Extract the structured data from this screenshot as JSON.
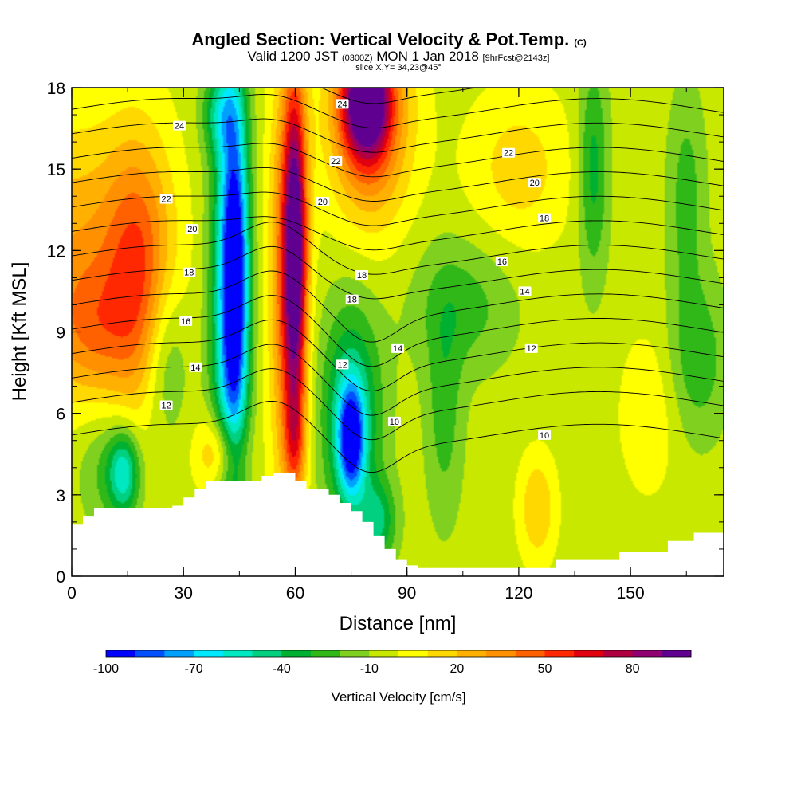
{
  "chart_data": {
    "type": "heatmap",
    "title": "Angled Section: Vertical Velocity & Pot.Temp.",
    "title_mark": "(C)",
    "subtitle_parts": [
      "Valid 1200 JST",
      "(0300Z)",
      "MON 1 Jan 2018",
      "[9hrFcst@2143z]"
    ],
    "slice_info": "slice X,Y= 34,23@45°",
    "xlabel": "Distance [nm]",
    "ylabel": "Height [Kft MSL]",
    "xlim": [
      0,
      175
    ],
    "ylim": [
      0,
      18
    ],
    "x_ticks": [
      0,
      30,
      60,
      90,
      120,
      150
    ],
    "x_tick_labels": [
      "0",
      "30",
      "60",
      "90",
      "120",
      "150"
    ],
    "y_ticks": [
      0,
      3,
      6,
      9,
      12,
      15,
      18
    ],
    "y_tick_labels": [
      "0",
      "3",
      "6",
      "9",
      "12",
      "15",
      "18"
    ],
    "colorbar": {
      "label": "Vertical Velocity [cm/s]",
      "min": -100,
      "max": 100,
      "step": 10,
      "tick_values": [
        -100,
        -70,
        -40,
        -10,
        20,
        50,
        80
      ],
      "tick_labels": [
        "-100",
        "-70",
        "-40",
        "-10",
        "20",
        "50",
        "80"
      ],
      "colors": [
        "#0000ff",
        "#0050ff",
        "#00a0ff",
        "#00e8ff",
        "#00e8c0",
        "#00d080",
        "#00b030",
        "#30b818",
        "#80d020",
        "#c8e800",
        "#ffff00",
        "#ffd800",
        "#ffb000",
        "#ff9000",
        "#ff6000",
        "#ff2800",
        "#e00010",
        "#b00040",
        "#900070",
        "#600090"
      ]
    },
    "background_velocity": -5,
    "velocity_cells": [
      {
        "x": 0,
        "z": 12,
        "rx": 22,
        "rz": 5,
        "v": 32
      },
      {
        "x": 18,
        "z": 11,
        "rx": 9,
        "rz": 5,
        "v": 45
      },
      {
        "x": 5,
        "z": 9,
        "rx": 10,
        "rz": 2.5,
        "v": 25
      },
      {
        "x": 25,
        "z": 8,
        "rx": 6,
        "rz": 3,
        "v": -25
      },
      {
        "x": 10,
        "z": 4,
        "rx": 8,
        "rz": 2.2,
        "v": -20
      },
      {
        "x": 14,
        "z": 3.8,
        "rx": 4,
        "rz": 1.5,
        "v": -45
      },
      {
        "x": 40,
        "z": 17,
        "rx": 5,
        "rz": 1.5,
        "v": -30
      },
      {
        "x": 42,
        "z": 10,
        "rx": 5,
        "rz": 9,
        "v": -55
      },
      {
        "x": 44,
        "z": 11,
        "rx": 3.5,
        "rz": 6,
        "v": -72
      },
      {
        "x": 40,
        "z": 4.5,
        "rx": 6,
        "rz": 1.5,
        "v": 40
      },
      {
        "x": 58,
        "z": 11,
        "rx": 5,
        "rz": 8,
        "v": 50
      },
      {
        "x": 60,
        "z": 12,
        "rx": 3,
        "rz": 6,
        "v": 85
      },
      {
        "x": 60,
        "z": 5,
        "rx": 3,
        "rz": 2,
        "v": 30
      },
      {
        "x": 80,
        "z": 17,
        "rx": 11,
        "rz": 4,
        "v": 55
      },
      {
        "x": 79,
        "z": 17.5,
        "rx": 6,
        "rz": 2,
        "v": 92
      },
      {
        "x": 75,
        "z": 6,
        "rx": 8,
        "rz": 4,
        "v": -45
      },
      {
        "x": 75,
        "z": 5,
        "rx": 3.5,
        "rz": 2,
        "v": -72
      },
      {
        "x": 82,
        "z": 2,
        "rx": 5,
        "rz": 1.5,
        "v": -35
      },
      {
        "x": 105,
        "z": 10,
        "rx": 14,
        "rz": 2.5,
        "v": -20
      },
      {
        "x": 100,
        "z": 6,
        "rx": 5,
        "rz": 4,
        "v": -20
      },
      {
        "x": 125,
        "z": 2.5,
        "rx": 5,
        "rz": 2,
        "v": 25
      },
      {
        "x": 120,
        "z": 15,
        "rx": 14,
        "rz": 3,
        "v": 20
      },
      {
        "x": 140,
        "z": 15,
        "rx": 4,
        "rz": 4,
        "v": -30
      },
      {
        "x": 165,
        "z": 14,
        "rx": 5,
        "rz": 4,
        "v": -20
      },
      {
        "x": 155,
        "z": 6,
        "rx": 8,
        "rz": 3,
        "v": 14
      },
      {
        "x": 168,
        "z": 8,
        "rx": 8,
        "rz": 3,
        "v": -22
      }
    ],
    "terrain": {
      "x": [
        0,
        3,
        6,
        9,
        15,
        21,
        27,
        30,
        33,
        36,
        39,
        42,
        48,
        51,
        54,
        57,
        60,
        63,
        66,
        69,
        72,
        75,
        78,
        81,
        84,
        87,
        90,
        93,
        96,
        99,
        102,
        105,
        110,
        115,
        120,
        125,
        130,
        135,
        140,
        143,
        147,
        153,
        160,
        167,
        175
      ],
      "z": [
        1.9,
        2.2,
        2.5,
        2.5,
        2.5,
        2.5,
        2.6,
        2.9,
        3.2,
        3.5,
        3.5,
        3.5,
        3.5,
        3.7,
        3.8,
        3.8,
        3.5,
        3.2,
        3.2,
        3.0,
        2.7,
        2.4,
        2.0,
        1.5,
        1.0,
        0.6,
        0.4,
        0.3,
        0.3,
        0.3,
        0.3,
        0.3,
        0.3,
        0.3,
        0.3,
        0.3,
        0.6,
        0.6,
        0.6,
        0.6,
        0.9,
        0.9,
        1.3,
        1.6,
        1.6
      ]
    },
    "isentropes": {
      "levels": [
        10,
        11,
        12,
        13,
        14,
        15,
        16,
        17,
        18,
        19,
        20,
        21,
        22,
        23,
        24
      ],
      "labels": [
        {
          "text": "24",
          "x": 41.5,
          "y": 17.4
        },
        {
          "text": "24",
          "x": 16.5,
          "y": 16.6
        },
        {
          "text": "22",
          "x": 40.5,
          "y": 15.3
        },
        {
          "text": "22",
          "x": 14.5,
          "y": 13.9
        },
        {
          "text": "20",
          "x": 38.5,
          "y": 13.8
        },
        {
          "text": "20",
          "x": 18.5,
          "y": 12.8
        },
        {
          "text": "18",
          "x": 44.5,
          "y": 11.1
        },
        {
          "text": "18",
          "x": 43,
          "y": 10.2
        },
        {
          "text": "18",
          "x": 18,
          "y": 11.2
        },
        {
          "text": "16",
          "x": 17.5,
          "y": 9.4
        },
        {
          "text": "14",
          "x": 19,
          "y": 7.7
        },
        {
          "text": "12",
          "x": 14.5,
          "y": 6.3
        },
        {
          "text": "12",
          "x": 41.5,
          "y": 7.8
        },
        {
          "text": "14",
          "x": 50,
          "y": 8.4
        },
        {
          "text": "10",
          "x": 49.5,
          "y": 5.7
        },
        {
          "text": "22",
          "x": 67,
          "y": 15.6
        },
        {
          "text": "20",
          "x": 71,
          "y": 14.5
        },
        {
          "text": "18",
          "x": 72.5,
          "y": 13.2
        },
        {
          "text": "16",
          "x": 66,
          "y": 11.6
        },
        {
          "text": "14",
          "x": 69.5,
          "y": 10.5
        },
        {
          "text": "12",
          "x": 70.5,
          "y": 8.4
        },
        {
          "text": "10",
          "x": 72.5,
          "y": 5.2
        }
      ]
    }
  }
}
